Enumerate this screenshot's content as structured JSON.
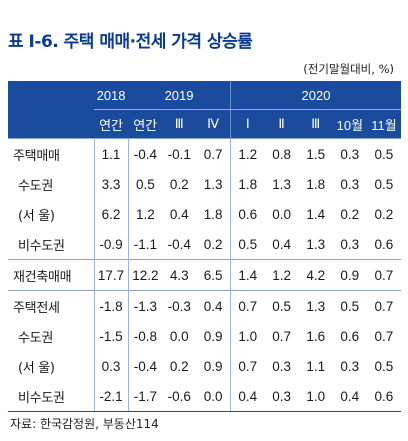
{
  "title": "표 Ⅰ-6. 주택 매매·전세 가격 상승률",
  "unit": "(전기말월대비, %)",
  "header": {
    "years": [
      "2018",
      "2019",
      "2020"
    ],
    "periods": [
      "연간",
      "연간",
      "Ⅲ",
      "Ⅳ",
      "Ⅰ",
      "Ⅱ",
      "Ⅲ",
      "10월",
      "11월"
    ]
  },
  "rows": [
    {
      "label": "주택매매",
      "values": [
        "1.1",
        "-0.4",
        "-0.1",
        "0.7",
        "1.2",
        "0.8",
        "1.5",
        "0.3",
        "0.5"
      ]
    },
    {
      "label": "수도권",
      "values": [
        "3.3",
        "0.5",
        "0.2",
        "1.3",
        "1.8",
        "1.3",
        "1.8",
        "0.3",
        "0.5"
      ]
    },
    {
      "label": "(서 울)",
      "values": [
        "6.2",
        "1.2",
        "0.4",
        "1.8",
        "0.6",
        "0.0",
        "1.4",
        "0.2",
        "0.2"
      ]
    },
    {
      "label": "비수도권",
      "values": [
        "-0.9",
        "-1.1",
        "-0.4",
        "0.2",
        "0.5",
        "0.4",
        "1.3",
        "0.3",
        "0.6"
      ]
    },
    {
      "label": "재건축매매",
      "values": [
        "17.7",
        "12.2",
        "4.3",
        "6.5",
        "1.4",
        "1.2",
        "4.2",
        "0.9",
        "0.7"
      ]
    },
    {
      "label": "주택전세",
      "values": [
        "-1.8",
        "-1.3",
        "-0.3",
        "0.4",
        "0.7",
        "0.5",
        "1.3",
        "0.5",
        "0.7"
      ]
    },
    {
      "label": "수도권",
      "values": [
        "-1.5",
        "-0.8",
        "0.0",
        "0.9",
        "1.0",
        "0.7",
        "1.6",
        "0.6",
        "0.7"
      ]
    },
    {
      "label": "(서 울)",
      "values": [
        "0.3",
        "-0.4",
        "0.2",
        "0.9",
        "0.7",
        "0.3",
        "1.1",
        "0.3",
        "0.5"
      ]
    },
    {
      "label": "비수도권",
      "values": [
        "-2.1",
        "-1.7",
        "-0.6",
        "0.0",
        "0.4",
        "0.3",
        "1.0",
        "0.4",
        "0.6"
      ]
    }
  ],
  "source": "자료: 한국감정원, 부동산114",
  "colors": {
    "header_bg": "#1a4b9c",
    "title": "#0b3b8c"
  }
}
